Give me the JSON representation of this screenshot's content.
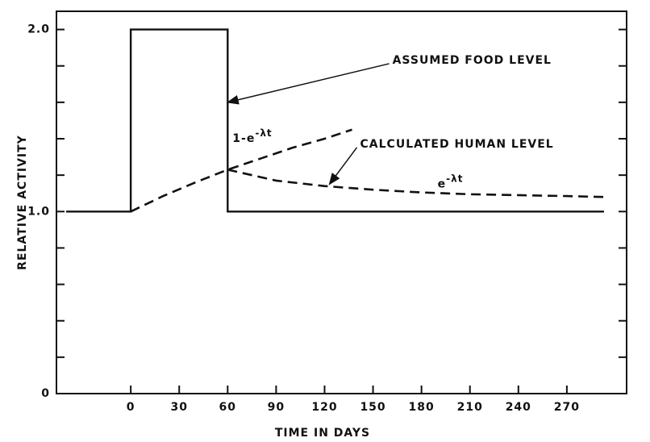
{
  "chart_data": {
    "type": "line",
    "xlabel": "TIME IN DAYS",
    "ylabel": "RELATIVE ACTIVITY",
    "xlim": [
      -46,
      307
    ],
    "ylim": [
      0,
      2.1
    ],
    "xticks": [
      0,
      30,
      60,
      90,
      120,
      150,
      180,
      210,
      240,
      270
    ],
    "yticks": [
      0,
      {
        "value": 1,
        "label": "1.0"
      },
      {
        "value": 2,
        "label": "2.0"
      }
    ],
    "yminor_ticks": [
      0.2,
      0.4,
      0.6,
      0.8,
      1.2,
      1.4,
      1.6,
      1.8
    ],
    "series": [
      {
        "color": "#111",
        "style": "solid",
        "x": [
          -40,
          0,
          0,
          60,
          60,
          293
        ],
        "values": [
          1,
          1,
          2,
          2,
          1,
          1
        ]
      },
      {
        "color": "#111",
        "style": "dashed",
        "x": [
          0,
          20,
          40,
          60,
          80,
          100,
          120,
          137
        ],
        "values": [
          1,
          1.085,
          1.16,
          1.23,
          1.29,
          1.35,
          1.4,
          1.45
        ]
      },
      {
        "color": "#111",
        "style": "dashed",
        "x": [
          60,
          90,
          120,
          150,
          180,
          210,
          240,
          270,
          293
        ],
        "values": [
          1.23,
          1.17,
          1.14,
          1.12,
          1.105,
          1.095,
          1.09,
          1.085,
          1.08
        ]
      }
    ],
    "annotations": [
      {
        "text": "ASSUMED FOOD LEVEL",
        "x": 162,
        "y": 1.83,
        "arrow_x": 60,
        "arrow_y": 1.6
      },
      {
        "text": "CALCULATED HUMAN LEVEL",
        "x": 142,
        "y": 1.37,
        "arrow_x": 123,
        "arrow_y": 1.15
      }
    ],
    "formulas": [
      {
        "base": "1-e",
        "exp": "-λt",
        "x": 63,
        "y": 1.4
      },
      {
        "base": "e",
        "exp": "-λt",
        "x": 190,
        "y": 1.15
      }
    ]
  }
}
